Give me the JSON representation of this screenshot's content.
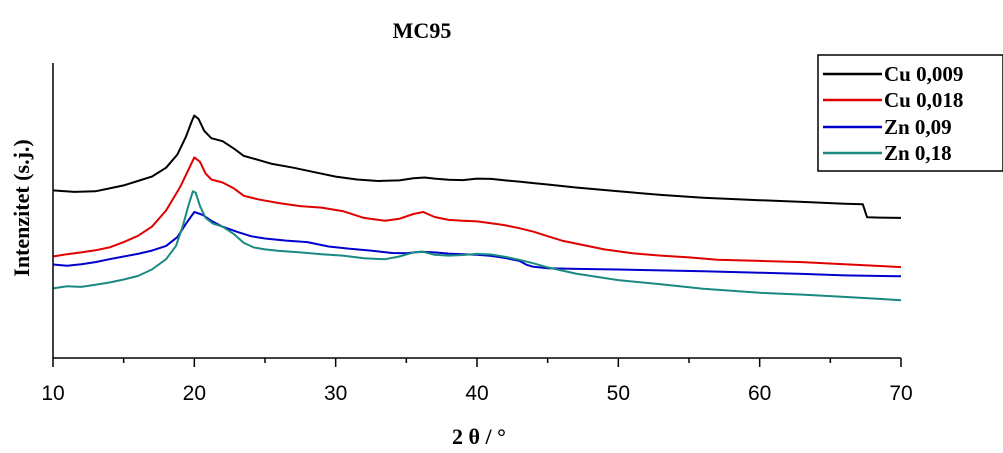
{
  "chart_data": {
    "type": "line",
    "title": "MC95",
    "xlabel": "2 θ / °",
    "ylabel": "Intenzitet (s.j.)",
    "xlim": [
      10,
      70
    ],
    "ylim": [
      0,
      100
    ],
    "y_ticks_labeled": false,
    "x_ticks": [
      10,
      20,
      30,
      40,
      50,
      60,
      70
    ],
    "x_tick_labels": [
      "10",
      "20",
      "30",
      "40",
      "50",
      "60",
      "70"
    ],
    "grid": false,
    "legend_placement": "top-right",
    "series": [
      {
        "name": "Cu 0,009",
        "color": "#000000",
        "x": [
          10,
          11.5,
          13,
          14,
          15,
          16,
          17,
          18,
          18.8,
          19.4,
          19.8,
          20.0,
          20.3,
          20.7,
          21.2,
          22,
          22.8,
          23.5,
          24.5,
          25.5,
          27,
          28.5,
          30,
          31.5,
          33,
          34.5,
          35.5,
          36.3,
          37,
          38,
          39,
          40,
          41,
          42,
          43,
          44,
          45,
          47,
          50,
          53,
          56,
          60,
          63,
          66,
          67.3,
          67.6,
          68.5,
          70
        ],
        "y": [
          56.8,
          56.3,
          56.5,
          57.5,
          58.5,
          60.0,
          61.5,
          64.5,
          69,
          75,
          80,
          82.2,
          81,
          77,
          74.5,
          73.5,
          71,
          68.5,
          67.2,
          65.8,
          64.5,
          63,
          61.5,
          60.5,
          60.0,
          60.2,
          60.9,
          61.2,
          60.8,
          60.4,
          60.3,
          60.8,
          60.7,
          60.2,
          59.8,
          59.3,
          58.8,
          57.8,
          56.5,
          55.3,
          54.3,
          53.5,
          52.9,
          52.3,
          52.1,
          47.7,
          47.6,
          47.5
        ]
      },
      {
        "name": "Cu 0,018",
        "color": "#e00000",
        "x": [
          10,
          11,
          12,
          13,
          14,
          15,
          16,
          17,
          18,
          19,
          19.6,
          20.0,
          20.4,
          20.8,
          21.2,
          22,
          22.8,
          23.5,
          24.5,
          26,
          27.5,
          29,
          30.5,
          32,
          33.5,
          34.5,
          35.5,
          36.2,
          37,
          38,
          39,
          40,
          41,
          42,
          43,
          44,
          45,
          46,
          47.5,
          49,
          51,
          53,
          55,
          57,
          60,
          63,
          66,
          70
        ],
        "y": [
          34.4,
          35.2,
          35.8,
          36.5,
          37.5,
          39.3,
          41.4,
          44.5,
          50,
          58,
          64,
          68.0,
          66.5,
          62.5,
          60.5,
          59.5,
          57.5,
          55,
          53.8,
          52.5,
          51.5,
          51.0,
          49.8,
          47.5,
          46.5,
          47.2,
          48.8,
          49.5,
          47.8,
          46.8,
          46.5,
          46.3,
          45.7,
          45.0,
          44.0,
          42.8,
          41.3,
          39.8,
          38.3,
          36.8,
          35.5,
          34.7,
          34.1,
          33.3,
          32.9,
          32.5,
          31.8,
          30.8
        ]
      },
      {
        "name": "Zn 0,09",
        "color": "#0000cc",
        "x": [
          10,
          11,
          12,
          13,
          14,
          15,
          16,
          17,
          18,
          18.8,
          19.4,
          20.0,
          20.6,
          21.2,
          22,
          23,
          24,
          25,
          26.5,
          28,
          29.5,
          31,
          32.5,
          34,
          35,
          36,
          37,
          38,
          39,
          40,
          41,
          42,
          43,
          43.5,
          44,
          45,
          47,
          50,
          53,
          56,
          60,
          63,
          66,
          70
        ],
        "y": [
          31.7,
          31.3,
          31.8,
          32.5,
          33.5,
          34.4,
          35.3,
          36.4,
          38,
          41,
          45.5,
          49.5,
          48.5,
          46.5,
          44.5,
          42.8,
          41.3,
          40.5,
          39.8,
          39.3,
          37.8,
          37.0,
          36.4,
          35.6,
          35.5,
          36.0,
          35.8,
          35.4,
          35.2,
          35.0,
          34.6,
          33.9,
          32.9,
          31.6,
          30.9,
          30.4,
          30.2,
          30.0,
          29.7,
          29.4,
          28.9,
          28.5,
          28.0,
          27.7
        ]
      },
      {
        "name": "Zn 0,18",
        "color": "#1a8a80",
        "x": [
          10,
          11,
          12,
          13,
          14,
          15,
          16,
          17,
          18,
          18.7,
          19.2,
          19.6,
          19.9,
          20.1,
          20.4,
          20.8,
          21.3,
          22,
          22.8,
          23.5,
          24.2,
          25,
          26,
          27.5,
          29,
          30.5,
          32,
          33.5,
          34.5,
          35.5,
          36.2,
          37,
          38,
          39,
          40,
          41,
          42,
          43,
          44,
          45,
          47,
          50,
          53,
          56,
          60,
          63,
          66,
          70
        ],
        "y": [
          23.6,
          24.3,
          24.1,
          24.8,
          25.6,
          26.6,
          27.8,
          30,
          33.5,
          38,
          45,
          52,
          56.5,
          56.0,
          51.5,
          47.5,
          45.6,
          44.5,
          42,
          39,
          37.5,
          36.8,
          36.3,
          35.8,
          35.2,
          34.7,
          33.8,
          33.5,
          34.4,
          35.8,
          36.0,
          35.0,
          34.7,
          34.9,
          35.3,
          35.1,
          34.3,
          33.3,
          32.1,
          30.7,
          28.6,
          26.4,
          25.0,
          23.5,
          22.1,
          21.5,
          20.7,
          19.6
        ]
      }
    ]
  }
}
